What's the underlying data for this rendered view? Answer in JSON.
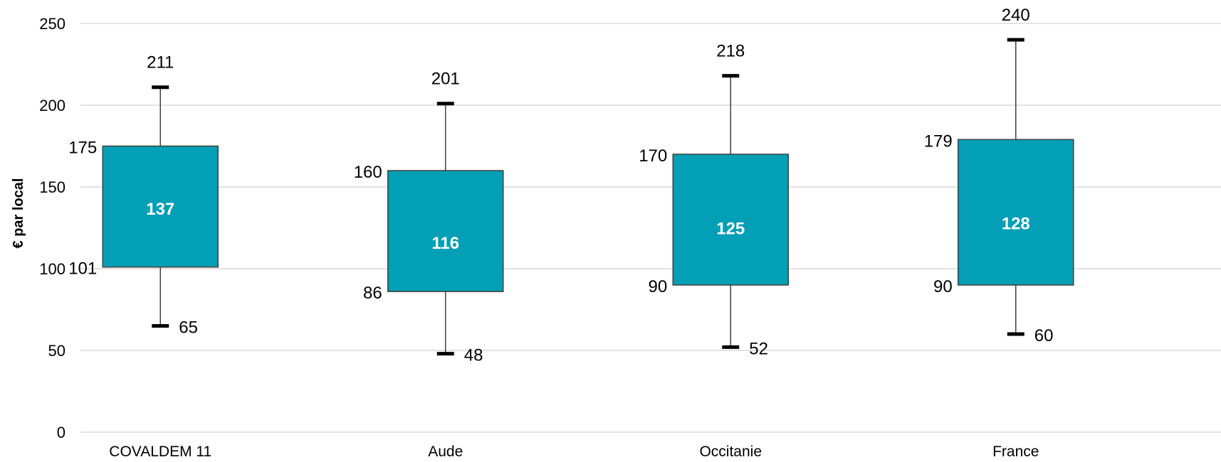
{
  "chart_data": {
    "type": "box",
    "ylabel": "€ par local",
    "ylim": [
      0,
      250
    ],
    "yticks": [
      0,
      50,
      100,
      150,
      200,
      250
    ],
    "grid": true,
    "box_color": "#039FB6",
    "categories": [
      "COVALDEM 11",
      "Aude",
      "Occitanie",
      "France"
    ],
    "boxes": [
      {
        "category": "COVALDEM 11",
        "min": 65,
        "q1": 101,
        "median": 137,
        "q3": 175,
        "max": 211
      },
      {
        "category": "Aude",
        "min": 48,
        "q1": 86,
        "median": 116,
        "q3": 160,
        "max": 201
      },
      {
        "category": "Occitanie",
        "min": 52,
        "q1": 90,
        "median": 125,
        "q3": 170,
        "max": 218
      },
      {
        "category": "France",
        "min": 60,
        "q1": 90,
        "median": 128,
        "q3": 179,
        "max": 240
      }
    ]
  }
}
